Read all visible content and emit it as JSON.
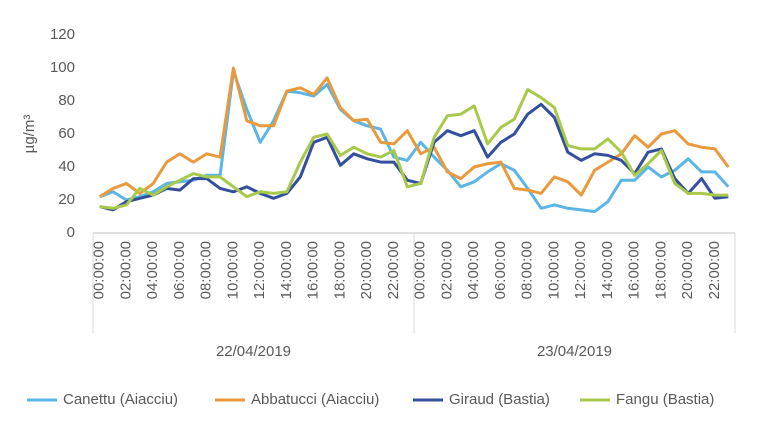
{
  "chart_data": {
    "type": "line",
    "y_label": "µg/m³",
    "categories": [
      "00:00:00",
      null,
      "02:00:00",
      null,
      "04:00:00",
      null,
      "06:00:00",
      null,
      "08:00:00",
      null,
      "10:00:00",
      null,
      "12:00:00",
      null,
      "14:00:00",
      null,
      "16:00:00",
      null,
      "18:00:00",
      null,
      "20:00:00",
      null,
      "22:00:00",
      null,
      "00:00:00",
      null,
      "02:00:00",
      null,
      "04:00:00",
      null,
      "06:00:00",
      null,
      "08:00:00",
      null,
      "10:00:00",
      null,
      "12:00:00",
      null,
      "14:00:00",
      null,
      "16:00:00",
      null,
      "18:00:00",
      null,
      "20:00:00",
      null,
      "22:00:00",
      null
    ],
    "groups": [
      "22/04/2019",
      "23/04/2019"
    ],
    "ylim": [
      0,
      120
    ],
    "yticks": [
      0,
      20,
      40,
      60,
      80,
      100,
      120
    ],
    "grid": false,
    "legend": "bottom",
    "series": [
      {
        "name": "Canettu (Aiacciu)",
        "color": "#5bb5e5",
        "values": [
          22,
          25,
          20,
          22,
          25,
          30,
          31,
          32,
          35,
          35,
          98,
          75,
          55,
          68,
          86,
          85,
          83,
          90,
          75,
          68,
          65,
          63,
          46,
          44,
          55,
          46,
          38,
          28,
          31,
          37,
          42,
          38,
          27,
          15,
          17,
          15,
          14,
          13,
          19,
          32,
          32,
          40,
          34,
          38,
          45,
          37,
          37,
          28
        ]
      },
      {
        "name": "Abbatucci (Aiacciu)",
        "color": "#e89a3c",
        "values": [
          22,
          27,
          30,
          24,
          30,
          43,
          48,
          43,
          48,
          46,
          100,
          68,
          65,
          65,
          86,
          88,
          84,
          94,
          76,
          68,
          69,
          55,
          54,
          62,
          48,
          52,
          37,
          33,
          40,
          42,
          43,
          27,
          26,
          24,
          34,
          31,
          23,
          38,
          43,
          48,
          59,
          52,
          60,
          62,
          54,
          52,
          51,
          40
        ]
      },
      {
        "name": "Giraud (Bastia)",
        "color": "#34509d",
        "values": [
          16,
          14,
          19,
          21,
          23,
          27,
          26,
          33,
          33,
          27,
          25,
          28,
          24,
          21,
          24,
          34,
          55,
          58,
          41,
          48,
          45,
          43,
          43,
          32,
          30,
          55,
          62,
          59,
          62,
          46,
          55,
          60,
          72,
          78,
          70,
          49,
          44,
          48,
          47,
          44,
          36,
          49,
          51,
          33,
          24,
          33,
          21,
          22
        ]
      },
      {
        "name": "Fangu (Bastia)",
        "color": "#a9c94a",
        "values": [
          16,
          15,
          17,
          27,
          23,
          28,
          32,
          36,
          34,
          34,
          28,
          22,
          25,
          24,
          25,
          43,
          58,
          60,
          47,
          52,
          48,
          46,
          50,
          28,
          30,
          58,
          71,
          72,
          77,
          54,
          64,
          69,
          87,
          82,
          76,
          53,
          51,
          51,
          57,
          49,
          35,
          42,
          50,
          30,
          24,
          24,
          23,
          23
        ]
      }
    ]
  }
}
